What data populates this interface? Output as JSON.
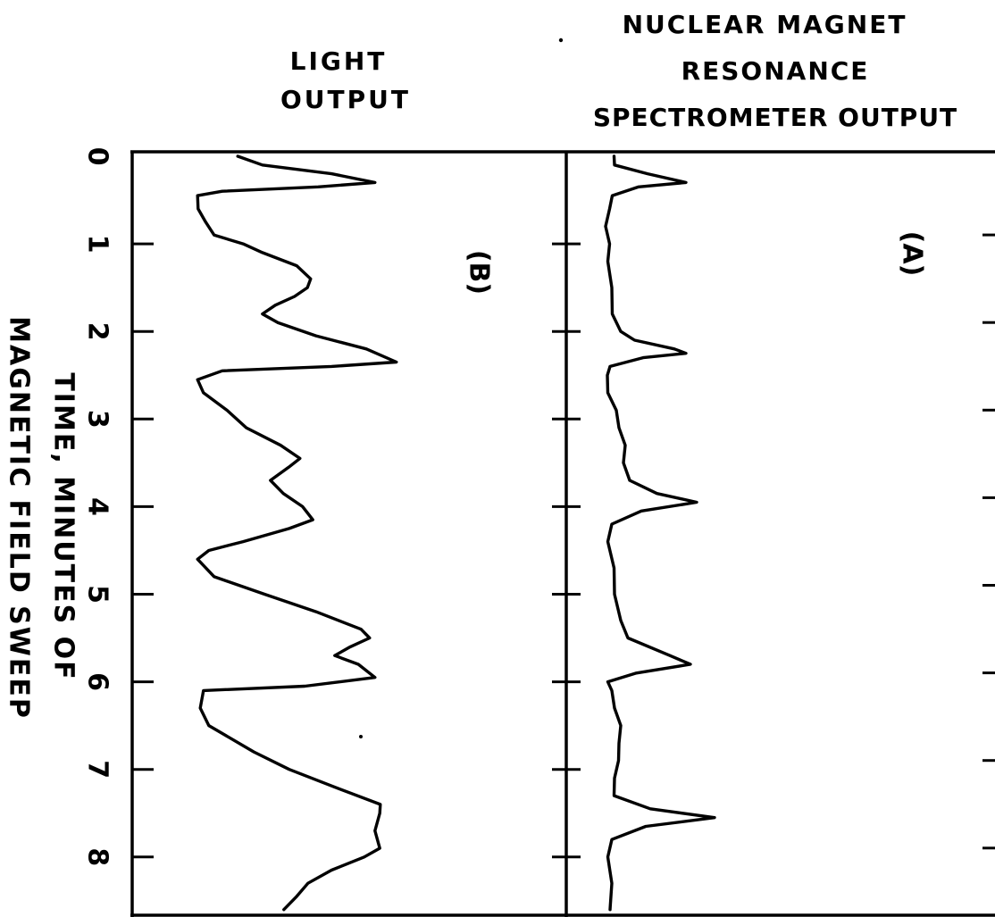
{
  "chart_data": [
    {
      "type": "line",
      "title_lines": [
        "LIGHT",
        "OUTPUT"
      ],
      "panel_label": "(B)",
      "xlabel_lines": [
        "TIME, MINUTES OF",
        "MAGNETIC FIELD SWEEP"
      ],
      "x_ticks": [
        "0",
        "1",
        "2",
        "3",
        "4",
        "5",
        "6",
        "7",
        "8"
      ],
      "xlim": [
        0,
        8.6
      ],
      "series": [
        {
          "points": [
            [
              0.0,
              0.2
            ],
            [
              0.1,
              0.3
            ],
            [
              0.2,
              0.55
            ],
            [
              0.3,
              0.72
            ],
            [
              0.35,
              0.5
            ],
            [
              0.4,
              0.15
            ],
            [
              0.45,
              0.05
            ],
            [
              0.6,
              0.06
            ],
            [
              0.75,
              0.08
            ],
            [
              0.9,
              0.12
            ],
            [
              1.0,
              0.22
            ],
            [
              1.1,
              0.3
            ],
            [
              1.25,
              0.42
            ],
            [
              1.4,
              0.48
            ],
            [
              1.5,
              0.46
            ],
            [
              1.6,
              0.42
            ],
            [
              1.7,
              0.34
            ],
            [
              1.8,
              0.3
            ],
            [
              1.9,
              0.35
            ],
            [
              2.05,
              0.5
            ],
            [
              2.2,
              0.68
            ],
            [
              2.35,
              0.8
            ],
            [
              2.4,
              0.55
            ],
            [
              2.45,
              0.15
            ],
            [
              2.55,
              0.05
            ],
            [
              2.7,
              0.08
            ],
            [
              2.9,
              0.16
            ],
            [
              3.1,
              0.24
            ],
            [
              3.3,
              0.36
            ],
            [
              3.45,
              0.44
            ],
            [
              3.55,
              0.39
            ],
            [
              3.7,
              0.33
            ],
            [
              3.85,
              0.37
            ],
            [
              4.0,
              0.45
            ],
            [
              4.15,
              0.48
            ],
            [
              4.25,
              0.4
            ],
            [
              4.4,
              0.22
            ],
            [
              4.5,
              0.1
            ],
            [
              4.6,
              0.05
            ],
            [
              4.8,
              0.12
            ],
            [
              5.0,
              0.3
            ],
            [
              5.2,
              0.5
            ],
            [
              5.4,
              0.66
            ],
            [
              5.5,
              0.7
            ],
            [
              5.6,
              0.62
            ],
            [
              5.7,
              0.57
            ],
            [
              5.8,
              0.65
            ],
            [
              5.95,
              0.72
            ],
            [
              6.05,
              0.45
            ],
            [
              6.1,
              0.08
            ],
            [
              6.3,
              0.06
            ],
            [
              6.5,
              0.1
            ],
            [
              6.8,
              0.26
            ],
            [
              7.0,
              0.4
            ],
            [
              7.2,
              0.56
            ],
            [
              7.4,
              0.74
            ],
            [
              7.5,
              0.73
            ],
            [
              7.7,
              0.72
            ],
            [
              7.9,
              0.73
            ],
            [
              8.0,
              0.68
            ],
            [
              8.15,
              0.55
            ],
            [
              8.3,
              0.47
            ],
            [
              8.45,
              0.42
            ],
            [
              8.6,
              0.38
            ]
          ]
        }
      ]
    },
    {
      "type": "line",
      "title_lines": [
        "NUCLEAR MAGNET",
        "RESONANCE",
        "SPECTROMETER OUTPUT"
      ],
      "panel_label": "(A)",
      "xlabel_lines": [
        "TIME, MINUTES OF",
        "MAGNETIC FIELD SWEEP"
      ],
      "x_ticks": [
        "0",
        "1",
        "2",
        "3",
        "4",
        "5",
        "6",
        "7",
        "8"
      ],
      "xlim": [
        0,
        8.6
      ],
      "series": [
        {
          "points": [
            [
              0.0,
              0.05
            ],
            [
              0.1,
              0.06
            ],
            [
              0.2,
              0.2
            ],
            [
              0.3,
              0.38
            ],
            [
              0.35,
              0.16
            ],
            [
              0.45,
              0.05
            ],
            [
              0.6,
              0.03
            ],
            [
              0.8,
              0.02
            ],
            [
              1.0,
              0.03
            ],
            [
              1.2,
              0.03
            ],
            [
              1.5,
              0.04
            ],
            [
              1.8,
              0.05
            ],
            [
              2.0,
              0.08
            ],
            [
              2.1,
              0.15
            ],
            [
              2.2,
              0.32
            ],
            [
              2.25,
              0.38
            ],
            [
              2.3,
              0.18
            ],
            [
              2.4,
              0.04
            ],
            [
              2.5,
              0.02
            ],
            [
              2.7,
              0.03
            ],
            [
              2.9,
              0.06
            ],
            [
              3.1,
              0.08
            ],
            [
              3.3,
              0.1
            ],
            [
              3.5,
              0.1
            ],
            [
              3.7,
              0.12
            ],
            [
              3.85,
              0.25
            ],
            [
              3.95,
              0.42
            ],
            [
              4.05,
              0.18
            ],
            [
              4.2,
              0.04
            ],
            [
              4.4,
              0.03
            ],
            [
              4.7,
              0.05
            ],
            [
              5.0,
              0.06
            ],
            [
              5.3,
              0.08
            ],
            [
              5.5,
              0.12
            ],
            [
              5.7,
              0.3
            ],
            [
              5.8,
              0.4
            ],
            [
              5.9,
              0.15
            ],
            [
              6.0,
              0.03
            ],
            [
              6.1,
              0.04
            ],
            [
              6.3,
              0.06
            ],
            [
              6.5,
              0.08
            ],
            [
              6.7,
              0.08
            ],
            [
              6.9,
              0.07
            ],
            [
              7.1,
              0.06
            ],
            [
              7.3,
              0.05
            ],
            [
              7.45,
              0.22
            ],
            [
              7.55,
              0.5
            ],
            [
              7.65,
              0.2
            ],
            [
              7.8,
              0.04
            ],
            [
              8.0,
              0.03
            ],
            [
              8.3,
              0.04
            ],
            [
              8.6,
              0.04
            ]
          ]
        }
      ]
    }
  ]
}
